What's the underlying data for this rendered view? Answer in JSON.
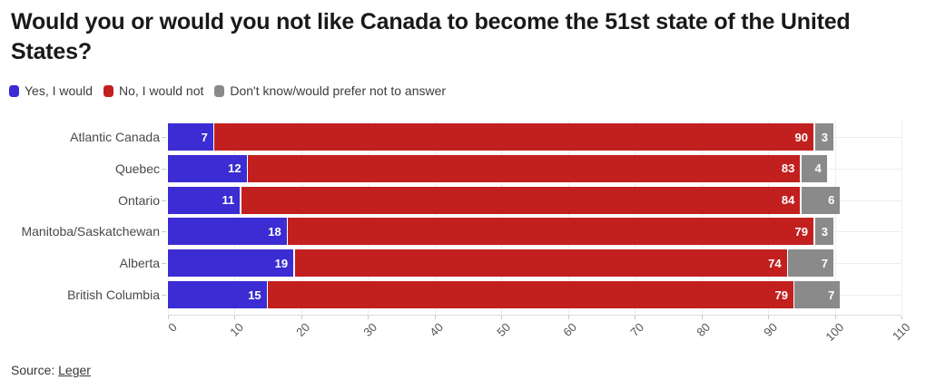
{
  "chart_data": {
    "type": "bar",
    "orientation": "horizontal",
    "stacked": true,
    "title": "Would you or would you not like Canada to become the 51st state of the United States?",
    "categories": [
      "Atlantic Canada",
      "Quebec",
      "Ontario",
      "Manitoba/Saskatchewan",
      "Alberta",
      "British Columbia"
    ],
    "series": [
      {
        "name": "Yes, I would",
        "color": "#3b2cd3",
        "values": [
          7,
          12,
          11,
          18,
          19,
          15
        ]
      },
      {
        "name": "No, I would not",
        "color": "#c2201f",
        "values": [
          90,
          83,
          84,
          79,
          74,
          79
        ]
      },
      {
        "name": "Don't know/would prefer not to answer",
        "color": "#8a8a8a",
        "values": [
          3,
          4,
          6,
          3,
          7,
          7
        ]
      }
    ],
    "x_ticks": [
      0,
      10,
      20,
      30,
      40,
      50,
      60,
      70,
      80,
      90,
      100,
      110
    ],
    "xlim": [
      0,
      110
    ],
    "value_labels": true,
    "grid": "vertical-gridlines-and-row-guides",
    "legend_position": "top-left",
    "value_label_color": "#ffffff"
  },
  "footer": {
    "source_prefix": "Source: ",
    "source_link_text": "Leger"
  }
}
